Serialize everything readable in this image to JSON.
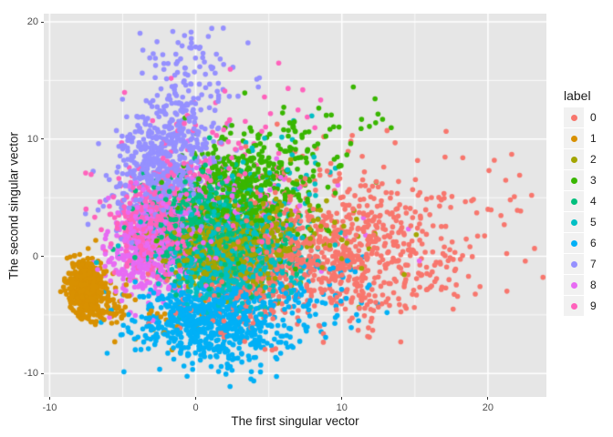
{
  "figure": {
    "background": "#FFFFFF",
    "panel_background": "#E6E6E6",
    "grid_color": "#FFFFFF",
    "tick_color": "#333333",
    "tick_label_color": "#4D4D4D",
    "axis_title_color": "#1A1A1A",
    "legend_key_background": "#F1F1F1"
  },
  "axes": {
    "x": {
      "tick_labels": [
        "-10",
        "0",
        "10",
        "20"
      ],
      "tick_values": [
        -10,
        0,
        10,
        20
      ],
      "minor_values": [
        -5,
        5,
        15
      ]
    },
    "y": {
      "tick_labels": [
        "-10",
        "0",
        "10",
        "20"
      ],
      "tick_values": [
        -10,
        0,
        10,
        20
      ],
      "minor_values": [
        -5,
        5,
        15
      ]
    }
  },
  "legend": {
    "title": "label"
  },
  "chart_data": {
    "type": "scatter",
    "title": "",
    "xlabel": "The first singular vector",
    "ylabel": "The second singular vector",
    "xlim": [
      -10.4,
      24.0
    ],
    "ylim": [
      -12.0,
      20.7
    ],
    "grid": true,
    "legend_position": "right",
    "point_radius_px": 2.8,
    "representation": "gaussian-cluster-approximation-of-point-cloud",
    "series": [
      {
        "name": "0",
        "color": "#F8766D",
        "clusters": [
          {
            "cx": 9.0,
            "cy": 0.4,
            "sx": 4.4,
            "sy": 3.0,
            "n": 760
          },
          {
            "cx": 3.8,
            "cy": -3.2,
            "sx": 2.6,
            "sy": 1.8,
            "n": 130
          },
          {
            "cx": 17.0,
            "cy": 2.0,
            "sx": 3.2,
            "sy": 2.6,
            "n": 70
          },
          {
            "cx": 10.5,
            "cy": 8.0,
            "sx": 3.0,
            "sy": 2.2,
            "n": 30
          }
        ]
      },
      {
        "name": "1",
        "color": "#D89000",
        "clusters": [
          {
            "cx": -7.5,
            "cy": -2.7,
            "sx": 0.55,
            "sy": 1.05,
            "n": 620
          },
          {
            "cx": -6.2,
            "cy": -4.3,
            "sx": 0.9,
            "sy": 0.9,
            "n": 60
          },
          {
            "cx": -2.5,
            "cy": -5.2,
            "sx": 2.2,
            "sy": 1.2,
            "n": 22
          }
        ]
      },
      {
        "name": "2",
        "color": "#A3A500",
        "clusters": [
          {
            "cx": 1.9,
            "cy": 0.4,
            "sx": 2.1,
            "sy": 1.6,
            "n": 560
          },
          {
            "cx": 4.3,
            "cy": 2.4,
            "sx": 2.3,
            "sy": 1.8,
            "n": 110
          },
          {
            "cx": 8.5,
            "cy": 0.5,
            "sx": 3.0,
            "sy": 2.3,
            "n": 30
          }
        ]
      },
      {
        "name": "3",
        "color": "#39B600",
        "clusters": [
          {
            "cx": 3.2,
            "cy": 5.3,
            "sx": 2.4,
            "sy": 2.2,
            "n": 390
          },
          {
            "cx": 6.0,
            "cy": 9.2,
            "sx": 2.6,
            "sy": 2.0,
            "n": 90
          },
          {
            "cx": 10.4,
            "cy": 11.6,
            "sx": 1.6,
            "sy": 1.4,
            "n": 10
          }
        ]
      },
      {
        "name": "4",
        "color": "#00BF7D",
        "clusters": [
          {
            "cx": 0.2,
            "cy": 2.9,
            "sx": 2.1,
            "sy": 2.1,
            "n": 520
          },
          {
            "cx": 2.4,
            "cy": 0.4,
            "sx": 2.2,
            "sy": 1.5,
            "n": 130
          }
        ]
      },
      {
        "name": "5",
        "color": "#00BFC4",
        "clusters": [
          {
            "cx": 2.3,
            "cy": -0.6,
            "sx": 2.3,
            "sy": 1.7,
            "n": 560
          },
          {
            "cx": 3.6,
            "cy": 2.4,
            "sx": 2.7,
            "sy": 2.2,
            "n": 110
          },
          {
            "cx": 5.0,
            "cy": 7.5,
            "sx": 2.2,
            "sy": 2.0,
            "n": 25
          }
        ]
      },
      {
        "name": "6",
        "color": "#00B0F6",
        "clusters": [
          {
            "cx": 0.8,
            "cy": -5.2,
            "sx": 2.5,
            "sy": 1.5,
            "n": 620
          },
          {
            "cx": 2.6,
            "cy": -7.6,
            "sx": 2.2,
            "sy": 1.0,
            "n": 90
          },
          {
            "cx": 6.8,
            "cy": -3.4,
            "sx": 2.4,
            "sy": 1.5,
            "n": 60
          },
          {
            "cx": 10.0,
            "cy": -2.0,
            "sx": 2.6,
            "sy": 1.8,
            "n": 25
          },
          {
            "cx": 2.0,
            "cy": -9.6,
            "sx": 1.6,
            "sy": 0.6,
            "n": 12
          }
        ]
      },
      {
        "name": "7",
        "color": "#9590FF",
        "clusters": [
          {
            "cx": -2.7,
            "cy": 6.6,
            "sx": 1.7,
            "sy": 2.4,
            "n": 450
          },
          {
            "cx": -1.5,
            "cy": 10.6,
            "sx": 1.6,
            "sy": 2.0,
            "n": 150
          },
          {
            "cx": -0.3,
            "cy": 15.3,
            "sx": 1.7,
            "sy": 2.2,
            "n": 90
          }
        ]
      },
      {
        "name": "8",
        "color": "#E76BF3",
        "clusters": [
          {
            "cx": -3.3,
            "cy": 0.7,
            "sx": 1.4,
            "sy": 2.0,
            "n": 420
          },
          {
            "cx": 0.4,
            "cy": 2.8,
            "sx": 2.7,
            "sy": 2.7,
            "n": 140
          },
          {
            "cx": 8.0,
            "cy": 4.0,
            "sx": 3.2,
            "sy": 2.4,
            "n": 18
          }
        ]
      },
      {
        "name": "9",
        "color": "#FF62BC",
        "clusters": [
          {
            "cx": -2.9,
            "cy": 2.7,
            "sx": 1.3,
            "sy": 1.8,
            "n": 390
          },
          {
            "cx": 0.6,
            "cy": 5.8,
            "sx": 2.8,
            "sy": 3.2,
            "n": 150
          },
          {
            "cx": 5.0,
            "cy": 13.5,
            "sx": 2.2,
            "sy": 2.0,
            "n": 14
          }
        ]
      }
    ]
  }
}
